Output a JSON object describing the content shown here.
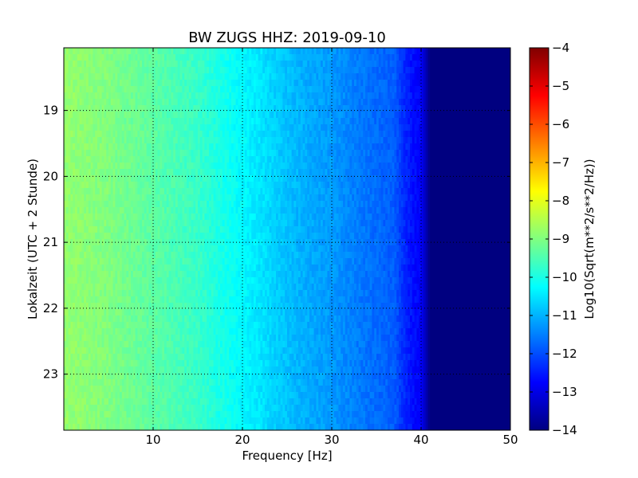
{
  "chart_data": {
    "type": "heatmap",
    "title": "BW ZUGS HHZ: 2019-09-10",
    "xlabel": "Frequency [Hz]",
    "ylabel": "Lokalzeit (UTC + 2 Stunde)",
    "xlim": [
      0,
      50
    ],
    "ylim": [
      18.05,
      23.85
    ],
    "x_ticks": [
      10,
      20,
      30,
      40,
      50
    ],
    "x_tick_labels": [
      "10",
      "20",
      "30",
      "40",
      "50"
    ],
    "y_ticks": [
      19,
      20,
      21,
      22,
      23
    ],
    "y_tick_labels": [
      "19",
      "20",
      "21",
      "22",
      "23"
    ],
    "y_inverted": true,
    "grid": true,
    "colormap": "jet",
    "colorbar": {
      "label": "Log10(Sqrt(m**2/s**2/Hz))",
      "range": [
        -14,
        -4
      ],
      "ticks": [
        -4,
        -5,
        -6,
        -7,
        -8,
        -9,
        -10,
        -11,
        -12,
        -13,
        -14
      ],
      "tick_labels": [
        "−4",
        "−5",
        "−6",
        "−7",
        "−8",
        "−9",
        "−10",
        "−11",
        "−12",
        "−13",
        "−14"
      ]
    },
    "spectrum_profile": {
      "frequency_hz": [
        0,
        5,
        10,
        15,
        20,
        22,
        24,
        27,
        30,
        33,
        35,
        37,
        38,
        39,
        40,
        41,
        50
      ],
      "log10_amplitude": [
        -8.8,
        -9.0,
        -9.35,
        -9.7,
        -10.3,
        -10.5,
        -10.75,
        -11.05,
        -11.25,
        -11.55,
        -11.7,
        -11.85,
        -12.3,
        -12.6,
        -12.8,
        -14.0,
        -14.0
      ]
    }
  }
}
